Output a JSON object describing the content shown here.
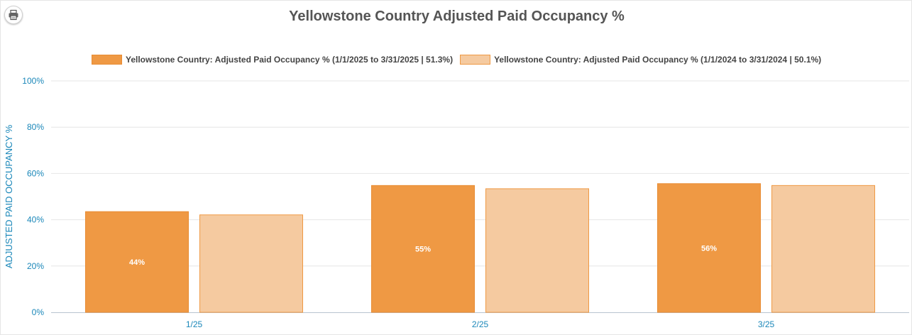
{
  "toolbar": {
    "print_icon": "printer-icon"
  },
  "chart_data": {
    "type": "bar",
    "title": "Yellowstone Country Adjusted Paid Occupancy %",
    "xlabel": "",
    "ylabel": "ADJUSTED PAID OCCUPANCY %",
    "ylim": [
      0,
      100
    ],
    "y_ticks": [
      "0%",
      "20%",
      "40%",
      "60%",
      "80%",
      "100%"
    ],
    "categories": [
      "1/25",
      "2/25",
      "3/25"
    ],
    "grid": true,
    "legend_position": "top",
    "series": [
      {
        "name": "Yellowstone Country: Adjusted Paid Occupancy % (1/1/2025 to 3/31/2025 | 51.3%)",
        "values": [
          43.5,
          54.8,
          55.6
        ],
        "data_labels": [
          "44%",
          "55%",
          "56%"
        ],
        "color": "#ef9944"
      },
      {
        "name": "Yellowstone Country: Adjusted Paid Occupancy % (1/1/2024 to 3/31/2024 | 50.1%)",
        "values": [
          42.1,
          53.4,
          54.8
        ],
        "data_labels": [
          "",
          "",
          ""
        ],
        "color": "#f5caa0"
      }
    ]
  }
}
